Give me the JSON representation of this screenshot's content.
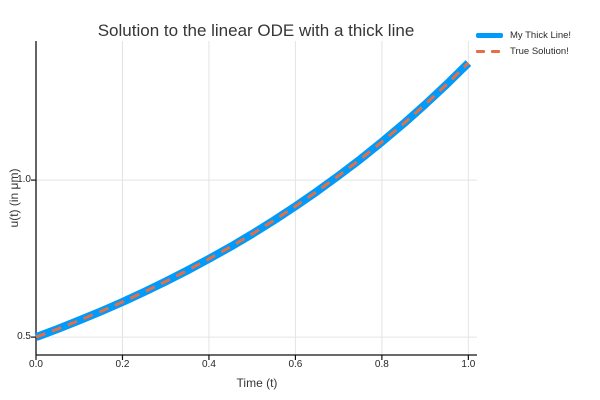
{
  "chart_data": {
    "type": "line",
    "title": "Solution to the linear ODE with a thick line",
    "xlabel": "Time (t)",
    "ylabel": "u(t) (in μm)",
    "xlim": [
      0,
      1.02
    ],
    "ylim": [
      0.443,
      1.443
    ],
    "xticks": [
      0,
      0.2,
      0.4,
      0.6,
      0.8,
      1.0
    ],
    "xtick_labels": [
      "0.0",
      "0.2",
      "0.4",
      "0.6",
      "0.8",
      "1.0"
    ],
    "yticks": [
      0.5,
      1.0
    ],
    "ytick_labels": [
      "0.5",
      "1.0"
    ],
    "grid": true,
    "legend_position": "outer top-right",
    "x": [
      0,
      0.05,
      0.1,
      0.15,
      0.2,
      0.25,
      0.3,
      0.35,
      0.4,
      0.45,
      0.5,
      0.55,
      0.6,
      0.65,
      0.7,
      0.75,
      0.8,
      0.85,
      0.9,
      0.95,
      1.0
    ],
    "series": [
      {
        "name": "My Thick Line!",
        "color": "#009AFA",
        "style": "solid",
        "stroke_width": 8,
        "values": [
          0.5,
          0.5259,
          0.5531,
          0.5818,
          0.6119,
          0.6436,
          0.677,
          0.712,
          0.7489,
          0.7877,
          0.8285,
          0.8714,
          0.9165,
          0.964,
          1.0139,
          1.0664,
          1.1217,
          1.1797,
          1.2409,
          1.3051,
          1.3728
        ]
      },
      {
        "name": "True Solution!",
        "color": "#E36F47",
        "style": "dash",
        "stroke_width": 3,
        "values": [
          0.5,
          0.5259,
          0.5531,
          0.5818,
          0.6119,
          0.6436,
          0.677,
          0.712,
          0.7489,
          0.7877,
          0.8285,
          0.8714,
          0.9165,
          0.964,
          1.0139,
          1.0664,
          1.1217,
          1.1797,
          1.2409,
          1.3051,
          1.3728
        ]
      }
    ],
    "colors": {
      "grid": "#E4E4E4",
      "axis": "#111111",
      "text": "#363636",
      "background": "#FFFFFF"
    }
  }
}
